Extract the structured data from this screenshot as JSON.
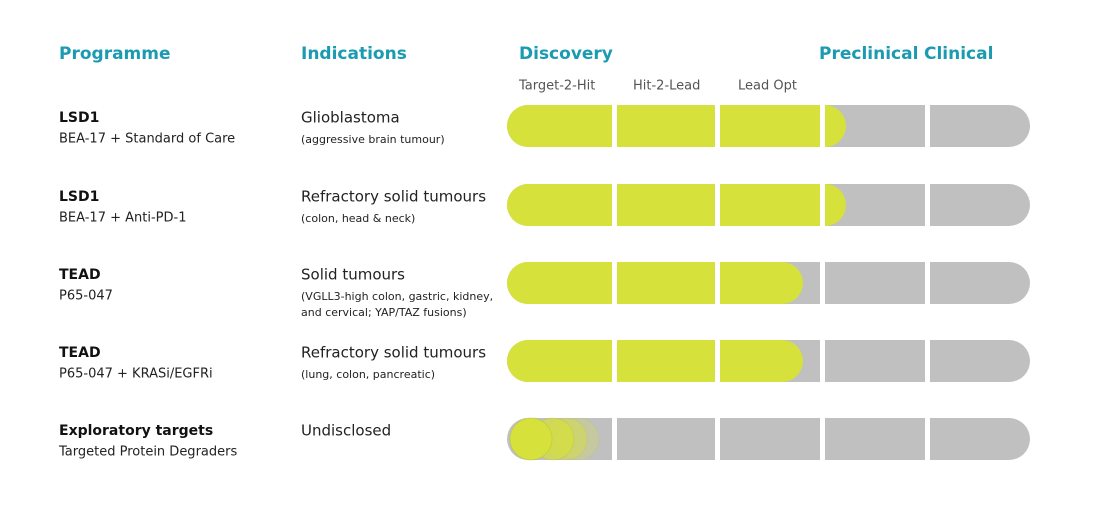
{
  "header": {
    "programme": "Programme",
    "indications": "Indications",
    "discovery": "Discovery",
    "preclinical": "Preclinical",
    "clinical": "Clinical"
  },
  "stages": [
    "Target-2-Hit",
    "Hit-2-Lead",
    "Lead Opt"
  ],
  "rows": [
    {
      "programme": "LSD1",
      "compound": "BEA-17 + Standard of Care",
      "indication": "Glioblastoma",
      "details": [
        "(aggressive brain tumour)"
      ]
    },
    {
      "programme": "LSD1",
      "compound": "BEA-17 + Anti-PD-1",
      "indication": "Refractory solid tumours",
      "details": [
        "(colon, head & neck)"
      ]
    },
    {
      "programme": "TEAD",
      "compound": "P65-047",
      "indication": "Solid tumours",
      "details": [
        "(VGLL3-high colon, gastric, kidney,",
        "and cervical; YAP/TAZ fusions)"
      ]
    },
    {
      "programme": "TEAD",
      "compound": "P65-047 + KRASi/EGFRi",
      "indication": "Refractory solid tumours",
      "details": [
        "(lung, colon, pancreatic)"
      ]
    },
    {
      "programme": "Exploratory targets",
      "compound": "Targeted Protein Degraders",
      "indication": "Undisclosed",
      "details": []
    }
  ]
}
